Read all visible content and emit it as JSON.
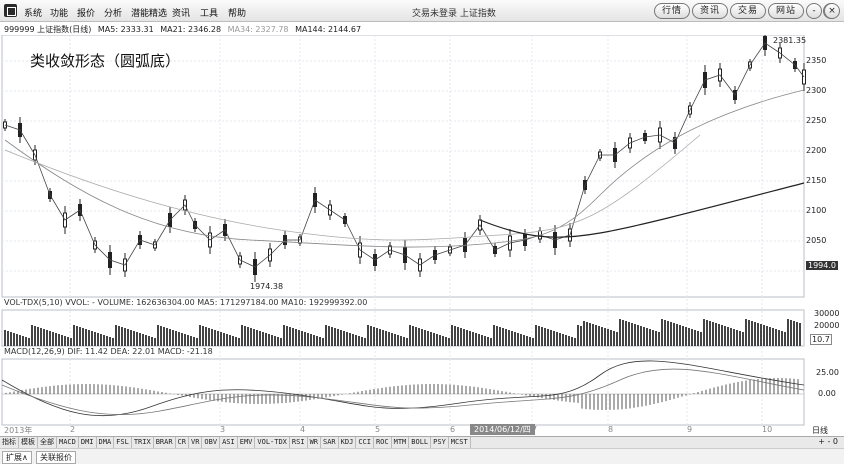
{
  "menu": [
    "系统",
    "功能",
    "报价",
    "分析",
    "潜能精选",
    "资讯",
    "工具",
    "帮助"
  ],
  "status": "交易未登录  上证指数",
  "right_buttons": [
    "行情",
    "资讯",
    "交易",
    "网站"
  ],
  "window_controls": {
    "minimize": "-",
    "restore": "@",
    "close": "×"
  },
  "legend": {
    "symbol": "999999 上证指数(日线)",
    "ma5": "MA5: 2333.31",
    "ma21": "MA21: 2346.28",
    "ma34": "MA34: 2327.78",
    "ma144": "MA144: 2144.67"
  },
  "pattern_label": "类收敛形态（圆弧底）",
  "price_axis": [
    "2350",
    "2300",
    "2250",
    "2200",
    "2150",
    "2100",
    "2050",
    "2000"
  ],
  "current_price": "1994.0",
  "high_label": "2381.35",
  "low_label": "1974.38",
  "volume_legend": "VOL-TDX(5,10) VVOL: -   VOLUME: 162636304.00  MA5: 171297184.00  MA10: 192999392.00",
  "volume_axis": [
    "30000",
    "20000"
  ],
  "volume_marker": "10.7",
  "macd_legend": "MACD(12,26,9) DIF: 11.42  DEA: 22.01  MACD: -21.18",
  "macd_axis": [
    "25.00",
    "0.00"
  ],
  "date_cursor": "2014/06/12/四",
  "year_label": "2013年",
  "month_labels": [
    "2",
    "3",
    "4",
    "5",
    "6",
    "7",
    "8",
    "9",
    "10"
  ],
  "period_label": "日线",
  "plus_minus": "+ - 0",
  "indicator_tabs": [
    "指标",
    "模板",
    "全部",
    "MACD",
    "DMI",
    "DMA",
    "FSL",
    "TRIX",
    "BRAR",
    "CR",
    "VR",
    "OBV",
    "ASI",
    "EMV",
    "VOL-TDX",
    "RSI",
    "WR",
    "SAR",
    "KDJ",
    "CCI",
    "ROC",
    "MTM",
    "BOLL",
    "PSY",
    "MCST"
  ],
  "sub_tabs": [
    "扩展∧",
    "关联报价"
  ],
  "colors": {
    "grid": "#dfe4ea",
    "candle": "#222222",
    "ma": "#555555",
    "ma144": "#222222"
  }
}
